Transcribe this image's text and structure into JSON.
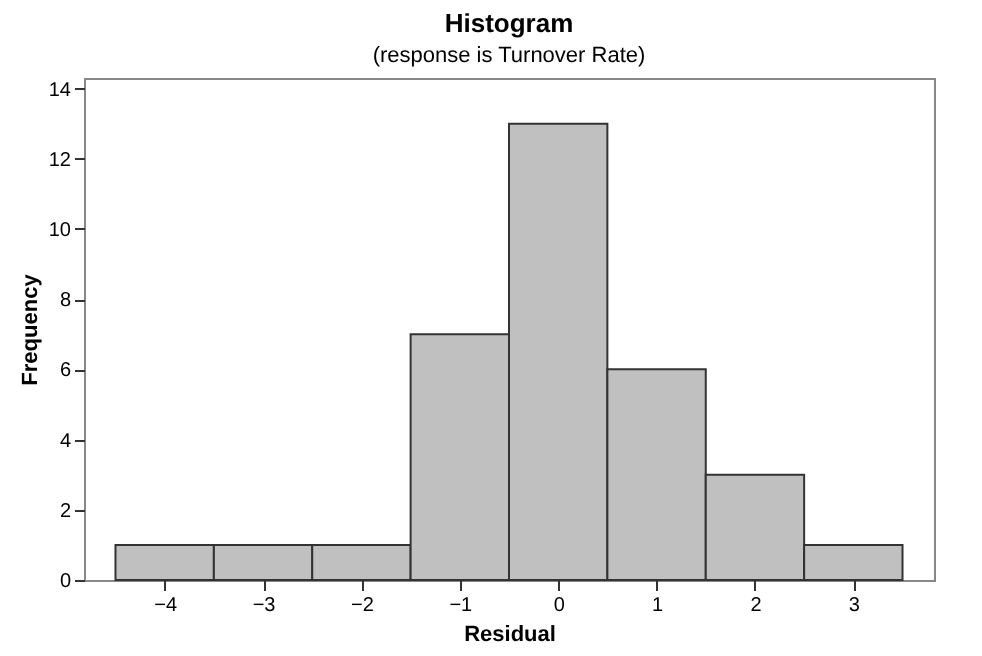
{
  "chart_data": {
    "type": "histogram",
    "title": "Histogram",
    "subtitle": "(response is Turnover Rate)",
    "xlabel": "Residual",
    "ylabel": "Frequency",
    "bins": [
      -4.5,
      -3.5,
      -2.5,
      -1.5,
      -0.5,
      0.5,
      1.5,
      2.5,
      3.5
    ],
    "values": [
      1,
      1,
      1,
      7,
      13,
      6,
      3,
      1
    ],
    "color": "#c0c0c0",
    "xlim": [
      -4.82,
      3.82
    ],
    "xticks": [
      -4,
      -3,
      -2,
      -1,
      0,
      1,
      2,
      3
    ],
    "ylim": [
      0,
      14.3
    ],
    "yticks": [
      0,
      2,
      4,
      6,
      8,
      10,
      12,
      14
    ],
    "grid": false
  }
}
